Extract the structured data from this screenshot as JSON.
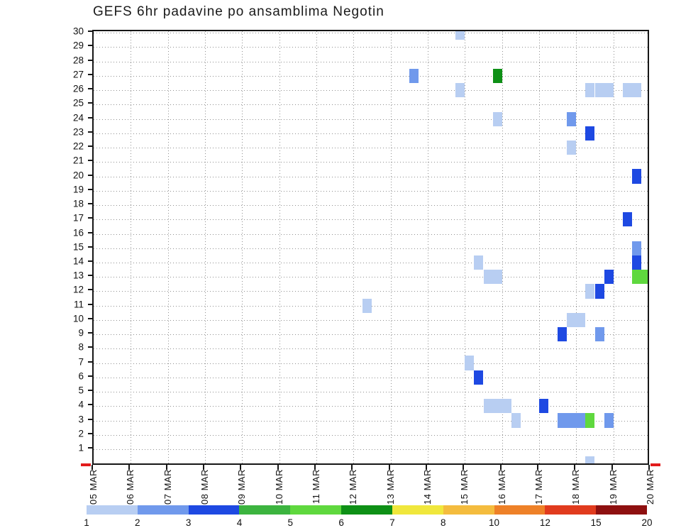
{
  "title": "GEFS 6hr padavine po ansamblima Negotin",
  "chart_data": {
    "type": "heatmap",
    "title": "GEFS 6hr padavine po ansamblima Negotin",
    "grid": true,
    "x_axis": {
      "slots_per_day": 4,
      "tick_labels": [
        "05 MAR",
        "06 MAR",
        "07 MAR",
        "08 MAR",
        "09 MAR",
        "10 MAR",
        "11 MAR",
        "12 MAR",
        "13 MAR",
        "14 MAR",
        "15 MAR",
        "16 MAR",
        "17 MAR",
        "18 MAR",
        "19 MAR",
        "20 MAR"
      ]
    },
    "y_axis": {
      "tick_labels": [
        "1",
        "2",
        "3",
        "4",
        "5",
        "6",
        "7",
        "8",
        "9",
        "10",
        "11",
        "12",
        "13",
        "14",
        "15",
        "16",
        "17",
        "18",
        "19",
        "20",
        "21",
        "22",
        "23",
        "24",
        "25",
        "26",
        "27",
        "28",
        "29",
        "30"
      ]
    },
    "cells": [
      {
        "member": 30,
        "slot": 39,
        "value": 1
      },
      {
        "member": 27,
        "slot": 34,
        "value": 2
      },
      {
        "member": 27,
        "slot": 43,
        "value": 6
      },
      {
        "member": 26,
        "slot": 39,
        "value": 1
      },
      {
        "member": 26,
        "slot": 53,
        "value": 1
      },
      {
        "member": 26,
        "slot": 54,
        "value": 1
      },
      {
        "member": 26,
        "slot": 55,
        "value": 1
      },
      {
        "member": 26,
        "slot": 57,
        "value": 1
      },
      {
        "member": 26,
        "slot": 58,
        "value": 1
      },
      {
        "member": 24,
        "slot": 43,
        "value": 1
      },
      {
        "member": 24,
        "slot": 51,
        "value": 2
      },
      {
        "member": 23,
        "slot": 53,
        "value": 3
      },
      {
        "member": 22,
        "slot": 51,
        "value": 1
      },
      {
        "member": 20,
        "slot": 58,
        "value": 3
      },
      {
        "member": 17,
        "slot": 57,
        "value": 3
      },
      {
        "member": 15,
        "slot": 58,
        "value": 2
      },
      {
        "member": 14,
        "slot": 58,
        "value": 3
      },
      {
        "member": 14,
        "slot": 41,
        "value": 1
      },
      {
        "member": 13,
        "slot": 42,
        "value": 1
      },
      {
        "member": 13,
        "slot": 43,
        "value": 1
      },
      {
        "member": 13,
        "slot": 55,
        "value": 3
      },
      {
        "member": 13,
        "slot": 58,
        "value": 5
      },
      {
        "member": 13,
        "slot": 59,
        "value": 5
      },
      {
        "member": 12,
        "slot": 53,
        "value": 1
      },
      {
        "member": 12,
        "slot": 54,
        "value": 3
      },
      {
        "member": 11,
        "slot": 29,
        "value": 1
      },
      {
        "member": 10,
        "slot": 51,
        "value": 1
      },
      {
        "member": 10,
        "slot": 52,
        "value": 1
      },
      {
        "member": 9,
        "slot": 50,
        "value": 3
      },
      {
        "member": 9,
        "slot": 54,
        "value": 2
      },
      {
        "member": 7,
        "slot": 40,
        "value": 1
      },
      {
        "member": 6,
        "slot": 41,
        "value": 3
      },
      {
        "member": 4,
        "slot": 42,
        "value": 1
      },
      {
        "member": 4,
        "slot": 43,
        "value": 1
      },
      {
        "member": 4,
        "slot": 44,
        "value": 1
      },
      {
        "member": 4,
        "slot": 48,
        "value": 3
      },
      {
        "member": 3,
        "slot": 45,
        "value": 1
      },
      {
        "member": 3,
        "slot": 50,
        "value": 2
      },
      {
        "member": 3,
        "slot": 51,
        "value": 2
      },
      {
        "member": 3,
        "slot": 52,
        "value": 2
      },
      {
        "member": 3,
        "slot": 53,
        "value": 5
      },
      {
        "member": 3,
        "slot": 55,
        "value": 2
      },
      {
        "member": 0,
        "slot": 53,
        "value": 1
      }
    ],
    "palette": [
      {
        "from": 1,
        "to": 2,
        "color": "#b8cef2"
      },
      {
        "from": 2,
        "to": 3,
        "color": "#7099ec"
      },
      {
        "from": 3,
        "to": 4,
        "color": "#1e49e2"
      },
      {
        "from": 4,
        "to": 5,
        "color": "#3cb43f"
      },
      {
        "from": 5,
        "to": 6,
        "color": "#5fd83e"
      },
      {
        "from": 6,
        "to": 7,
        "color": "#0e9016"
      },
      {
        "from": 7,
        "to": 8,
        "color": "#f0e73c"
      },
      {
        "from": 8,
        "to": 10,
        "color": "#f4bc3e"
      },
      {
        "from": 10,
        "to": 12,
        "color": "#ee8128"
      },
      {
        "from": 12,
        "to": 15,
        "color": "#e13b1e"
      },
      {
        "from": 15,
        "to": 20,
        "color": "#8e1010"
      }
    ],
    "colorbar": {
      "tick_labels": [
        "1",
        "2",
        "3",
        "4",
        "5",
        "6",
        "7",
        "8",
        "10",
        "12",
        "15",
        "20"
      ]
    },
    "axis_end_marker_color": "#e21b1b"
  }
}
